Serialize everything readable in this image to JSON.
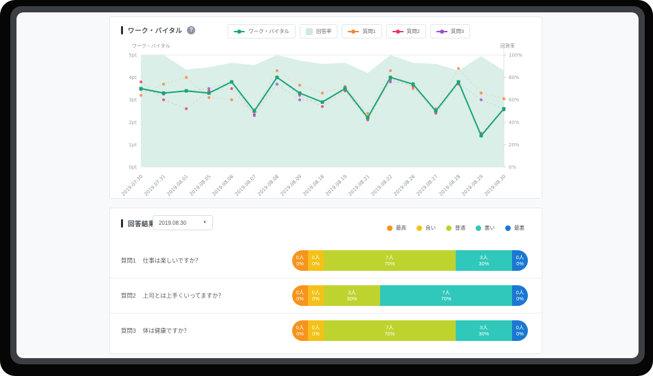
{
  "vital": {
    "title": "ワーク・バイタル",
    "help_glyph": "?",
    "legend": [
      {
        "label": "ワーク・バイタル",
        "swatch": "line",
        "color": "#18a578"
      },
      {
        "label": "回答率",
        "swatch": "area",
        "color": "#cdeade"
      },
      {
        "label": "質問1",
        "swatch": "dashed",
        "color": "#f08637"
      },
      {
        "label": "質問2",
        "swatch": "dashed",
        "color": "#e73a68"
      },
      {
        "label": "質問3",
        "swatch": "dashed",
        "color": "#9b50d0"
      }
    ]
  },
  "answers": {
    "title": "回答結果",
    "date_select": "2019.08.30",
    "dropdown_caret": "▼",
    "legend": [
      {
        "label": "最高",
        "color": "#f7941e"
      },
      {
        "label": "良い",
        "color": "#f4c118"
      },
      {
        "label": "普通",
        "color": "#bfd32f"
      },
      {
        "label": "悪い",
        "color": "#2fc8ba"
      },
      {
        "label": "最悪",
        "color": "#1a78d2"
      }
    ]
  },
  "chart_data": [
    {
      "type": "line",
      "title": "ワーク・バイタル",
      "legend_position": "top",
      "grid": true,
      "x_labels": [
        "2019.07.30",
        "2019.07.31",
        "2019.08.01",
        "2019.08.05",
        "2019.08.06",
        "2019.08.07",
        "2019.08.08",
        "2019.08.09",
        "2019.08.16",
        "2019.08.19",
        "2019.08.21",
        "2019.08.22",
        "2019.08.26",
        "2019.08.27",
        "2019.08.28",
        "2019.08.29",
        "2019.08.30"
      ],
      "y_left": {
        "label": "ワーク・バイタル",
        "ticks": [
          "5pt",
          "4pt",
          "3pt",
          "2pt",
          "1pt",
          "0pt"
        ],
        "min": 0,
        "max": 5
      },
      "y_right": {
        "label": "回答率",
        "ticks": [
          "100%",
          "80%",
          "60%",
          "40%",
          "20%",
          "0%"
        ],
        "min": 0,
        "max": 100
      },
      "series": [
        {
          "name": "回答率",
          "type": "area",
          "axis": "right",
          "color": "#daefe7",
          "values": [
            100,
            100,
            87,
            89,
            93,
            91,
            100,
            95,
            92,
            93,
            84,
            100,
            93,
            92,
            86,
            99,
            86
          ]
        },
        {
          "name": "質問1",
          "type": "scatter",
          "axis": "left",
          "color": "#f08637",
          "values": [
            3.2,
            3.7,
            4.0,
            3.1,
            3.0,
            2.55,
            4.3,
            3.65,
            3.3,
            3.6,
            2.4,
            4.3,
            3.5,
            2.6,
            4.4,
            3.3,
            3.05
          ]
        },
        {
          "name": "質問2",
          "type": "scatter",
          "axis": "left",
          "color": "#e73a68",
          "values": [
            3.8,
            3.0,
            2.6,
            3.4,
            3.5,
            2.35,
            4.0,
            3.2,
            2.7,
            3.4,
            2.1,
            3.9,
            3.6,
            2.4,
            3.7,
            1.5,
            2.55
          ]
        },
        {
          "name": "質問3",
          "type": "scatter",
          "axis": "left",
          "color": "#9b50d0",
          "values": [
            3.45,
            3.25,
            3.4,
            3.5,
            3.8,
            2.3,
            3.7,
            3.0,
            2.9,
            3.55,
            2.25,
            3.8,
            3.7,
            2.55,
            3.75,
            3.0,
            2.6
          ]
        },
        {
          "name": "ワーク・バイタル",
          "type": "line",
          "axis": "left",
          "color": "#18a578",
          "values": [
            3.5,
            3.3,
            3.4,
            3.3,
            3.8,
            2.5,
            4.0,
            3.3,
            2.9,
            3.5,
            2.2,
            4.0,
            3.7,
            2.5,
            3.8,
            1.4,
            2.6
          ]
        }
      ]
    },
    {
      "type": "bar",
      "stacked": true,
      "title": "回答結果",
      "date": "2019.08.30",
      "categories": [
        "最高",
        "良い",
        "普通",
        "悪い",
        "最悪"
      ],
      "questions": [
        {
          "name": "質問1",
          "text": "仕事は楽しいですか？",
          "segments": [
            {
              "count": 0,
              "count_label": "0人",
              "pct": 0,
              "pct_label": "0%"
            },
            {
              "count": 0,
              "count_label": "0人",
              "pct": 0,
              "pct_label": "0%"
            },
            {
              "count": 7,
              "count_label": "7人",
              "pct": 70,
              "pct_label": "70%"
            },
            {
              "count": 3,
              "count_label": "3人",
              "pct": 30,
              "pct_label": "30%"
            },
            {
              "count": 0,
              "count_label": "0人",
              "pct": 0,
              "pct_label": "0%"
            }
          ]
        },
        {
          "name": "質問2",
          "text": "上司とは上手くいってますか？",
          "segments": [
            {
              "count": 0,
              "count_label": "0人",
              "pct": 0,
              "pct_label": "0%"
            },
            {
              "count": 0,
              "count_label": "0人",
              "pct": 0,
              "pct_label": "0%"
            },
            {
              "count": 3,
              "count_label": "3人",
              "pct": 30,
              "pct_label": "30%"
            },
            {
              "count": 7,
              "count_label": "7人",
              "pct": 70,
              "pct_label": "70%"
            },
            {
              "count": 0,
              "count_label": "0人",
              "pct": 0,
              "pct_label": "0%"
            }
          ]
        },
        {
          "name": "質問3",
          "text": "体は健康ですか？",
          "segments": [
            {
              "count": 0,
              "count_label": "0人",
              "pct": 0,
              "pct_label": "0%"
            },
            {
              "count": 0,
              "count_label": "0人",
              "pct": 0,
              "pct_label": "0%"
            },
            {
              "count": 7,
              "count_label": "7人",
              "pct": 70,
              "pct_label": "70%"
            },
            {
              "count": 3,
              "count_label": "3人",
              "pct": 30,
              "pct_label": "30%"
            },
            {
              "count": 0,
              "count_label": "0人",
              "pct": 0,
              "pct_label": "0%"
            }
          ]
        }
      ]
    }
  ]
}
